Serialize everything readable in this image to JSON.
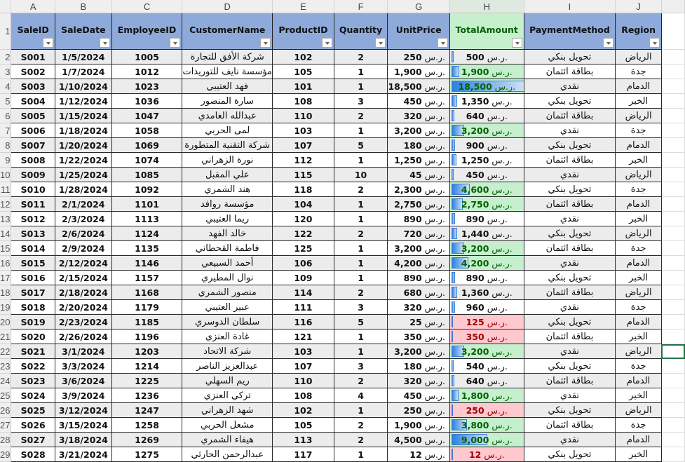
{
  "column_letters": [
    "A",
    "B",
    "C",
    "D",
    "E",
    "F",
    "G",
    "H",
    "I",
    "J"
  ],
  "headers": [
    "SaleID",
    "SaleDate",
    "EmployeeID",
    "CustomerName",
    "ProductID",
    "Quantity",
    "UnitPrice",
    "TotalAmount",
    "PaymentMethod",
    "Region"
  ],
  "currency": "ر.س.",
  "colors": {
    "header_fill": "#8eaadb",
    "good_fill": "#c6efce",
    "good_text": "#006100",
    "bad_fill": "#ffc7ce",
    "bad_text": "#9c0006",
    "databar": "#2f7fe0"
  },
  "databar_max": 18500,
  "selected_cell_row": 22,
  "rows": [
    [
      "S001",
      "1/5/2024",
      "1005",
      "شركة الأفق للتجارة",
      "102",
      "2",
      "250",
      "500",
      "تحويل بنكي",
      "الرياض"
    ],
    [
      "S002",
      "1/7/2024",
      "1012",
      "مؤسسة نايف للتوريدات",
      "105",
      "1",
      "1,900",
      "1,900",
      "بطاقة ائتمان",
      "جدة"
    ],
    [
      "S003",
      "1/10/2024",
      "1023",
      "فهد العتيبي",
      "101",
      "1",
      "18,500",
      "18,500",
      "نقدي",
      "الدمام"
    ],
    [
      "S004",
      "1/12/2024",
      "1036",
      "سارة المنصور",
      "108",
      "3",
      "450",
      "1,350",
      "تحويل بنكي",
      "الخبر"
    ],
    [
      "S005",
      "1/15/2024",
      "1047",
      "عبدالله الغامدي",
      "110",
      "2",
      "320",
      "640",
      "بطاقة ائتمان",
      "الرياض"
    ],
    [
      "S006",
      "1/18/2024",
      "1058",
      "لمى الحربي",
      "103",
      "1",
      "3,200",
      "3,200",
      "نقدي",
      "جدة"
    ],
    [
      "S007",
      "1/20/2024",
      "1069",
      "شركة التقنية المتطورة",
      "107",
      "5",
      "180",
      "900",
      "تحويل بنكي",
      "الدمام"
    ],
    [
      "S008",
      "1/22/2024",
      "1074",
      "نورة الزهراني",
      "112",
      "1",
      "1,250",
      "1,250",
      "بطاقة ائتمان",
      "الخبر"
    ],
    [
      "S009",
      "1/25/2024",
      "1085",
      "علي المقبل",
      "115",
      "10",
      "45",
      "450",
      "نقدي",
      "الرياض"
    ],
    [
      "S010",
      "1/28/2024",
      "1092",
      "هند الشمري",
      "118",
      "2",
      "2,300",
      "4,600",
      "تحويل بنكي",
      "جدة"
    ],
    [
      "S011",
      "2/1/2024",
      "1101",
      "مؤسسة روافد",
      "104",
      "1",
      "2,750",
      "2,750",
      "بطاقة ائتمان",
      "الدمام"
    ],
    [
      "S012",
      "2/3/2024",
      "1113",
      "ريما العتيبي",
      "120",
      "1",
      "890",
      "890",
      "نقدي",
      "الخبر"
    ],
    [
      "S013",
      "2/6/2024",
      "1124",
      "خالد الفهد",
      "122",
      "2",
      "720",
      "1,440",
      "تحويل بنكي",
      "الرياض"
    ],
    [
      "S014",
      "2/9/2024",
      "1135",
      "فاطمة القحطاني",
      "125",
      "1",
      "3,200",
      "3,200",
      "بطاقة ائتمان",
      "جدة"
    ],
    [
      "S015",
      "2/12/2024",
      "1146",
      "أحمد السبيعي",
      "106",
      "1",
      "4,200",
      "4,200",
      "نقدي",
      "الدمام"
    ],
    [
      "S016",
      "2/15/2024",
      "1157",
      "نوال المطيري",
      "109",
      "1",
      "890",
      "890",
      "تحويل بنكي",
      "الخبر"
    ],
    [
      "S017",
      "2/18/2024",
      "1168",
      "منصور الشمري",
      "114",
      "2",
      "680",
      "1,360",
      "بطاقة ائتمان",
      "الرياض"
    ],
    [
      "S018",
      "2/20/2024",
      "1179",
      "عبير العتيبي",
      "111",
      "3",
      "320",
      "960",
      "نقدي",
      "جدة"
    ],
    [
      "S019",
      "2/23/2024",
      "1185",
      "سلطان الدوسري",
      "116",
      "5",
      "25",
      "125",
      "تحويل بنكي",
      "الدمام"
    ],
    [
      "S020",
      "2/26/2024",
      "1196",
      "غادة العنزي",
      "121",
      "1",
      "350",
      "350",
      "بطاقة ائتمان",
      "الخبر"
    ],
    [
      "S021",
      "3/1/2024",
      "1203",
      "شركة الاتحاد",
      "103",
      "1",
      "3,200",
      "3,200",
      "نقدي",
      "الرياض"
    ],
    [
      "S022",
      "3/3/2024",
      "1214",
      "عبدالعزيز الناصر",
      "107",
      "3",
      "180",
      "540",
      "تحويل بنكي",
      "جدة"
    ],
    [
      "S023",
      "3/6/2024",
      "1225",
      "ريم السهلي",
      "110",
      "2",
      "320",
      "640",
      "بطاقة ائتمان",
      "الدمام"
    ],
    [
      "S024",
      "3/9/2024",
      "1236",
      "تركي العنزي",
      "108",
      "4",
      "450",
      "1,800",
      "نقدي",
      "الخبر"
    ],
    [
      "S025",
      "3/12/2024",
      "1247",
      "شهد الزهراني",
      "102",
      "1",
      "250",
      "250",
      "تحويل بنكي",
      "الرياض"
    ],
    [
      "S026",
      "3/15/2024",
      "1258",
      "مشعل الحربي",
      "105",
      "2",
      "1,900",
      "3,800",
      "بطاقة ائتمان",
      "جدة"
    ],
    [
      "S027",
      "3/18/2024",
      "1269",
      "هيفاء الشمري",
      "113",
      "2",
      "4,500",
      "9,000",
      "نقدي",
      "الدمام"
    ],
    [
      "S028",
      "3/21/2024",
      "1275",
      "عبدالرحمن الحارثي",
      "117",
      "1",
      "12",
      "12",
      "تحويل بنكي",
      "الخبر"
    ]
  ]
}
